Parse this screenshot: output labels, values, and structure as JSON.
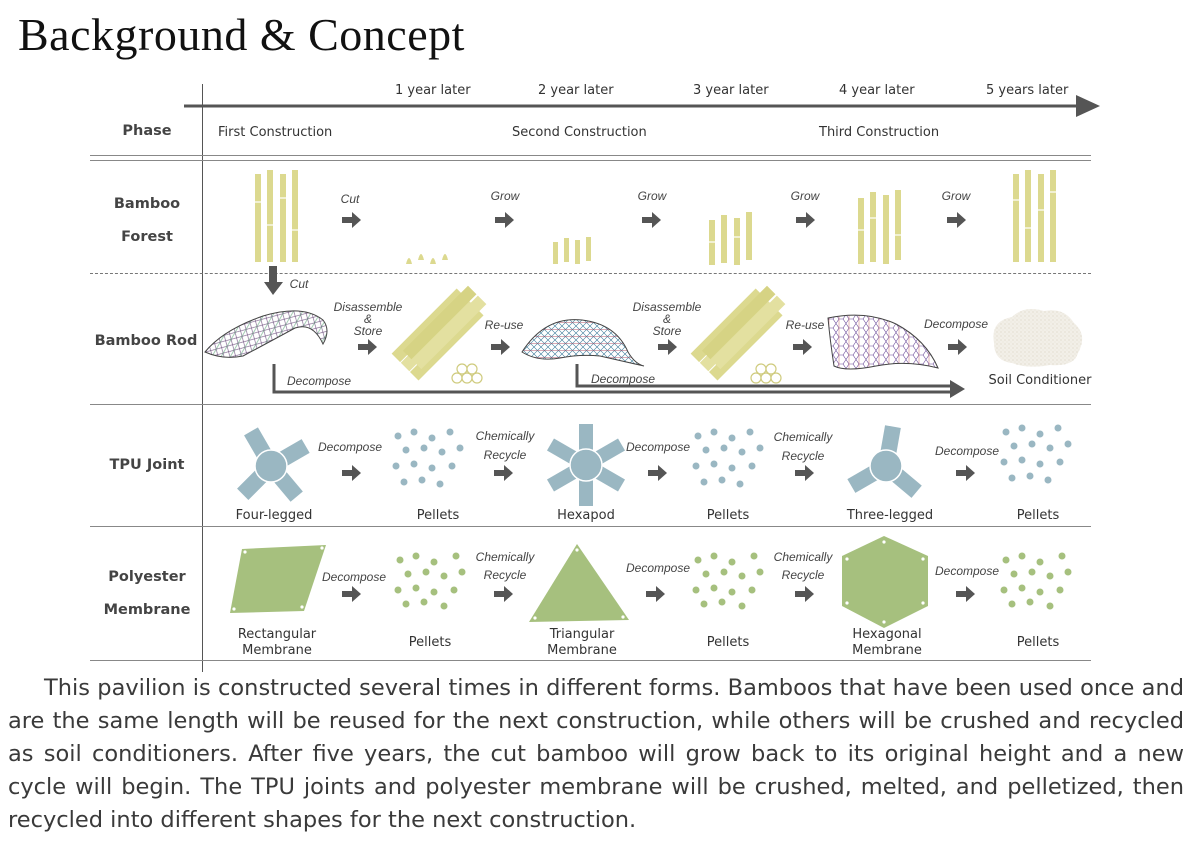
{
  "title": "Background & Concept",
  "timeline": {
    "years": [
      "1 year later",
      "2 year later",
      "3 year later",
      "4 year later",
      "5 years later"
    ],
    "phase_label": "Phase",
    "phases": [
      "First Construction",
      "Second Construction",
      "Third Construction"
    ]
  },
  "rows": {
    "bamboo_forest": {
      "label_1": "Bamboo",
      "label_2": "Forest",
      "actions": [
        "Cut",
        "Grow",
        "Grow",
        "Grow",
        "Grow"
      ],
      "down_action": "Cut"
    },
    "bamboo_rod": {
      "label": "Bamboo Rod",
      "actions": [
        {
          "l1": "Disassemble",
          "l2": "&",
          "l3": "Store"
        },
        {
          "l1": "Re-use"
        },
        {
          "l1": "Disassemble",
          "l2": "&",
          "l3": "Store"
        },
        {
          "l1": "Re-use"
        },
        {
          "l1": "Decompose"
        }
      ],
      "decompose_1": "Decompose",
      "decompose_2": "Decompose",
      "end_label": "Soil Conditioner"
    },
    "tpu_joint": {
      "label": "TPU Joint",
      "items": [
        "Four-legged",
        "Pellets",
        "Hexapod",
        "Pellets",
        "Three-legged",
        "Pellets"
      ],
      "actions": [
        {
          "l1": "Decompose"
        },
        {
          "l1": "Chemically",
          "l2": "Recycle"
        },
        {
          "l1": "Decompose"
        },
        {
          "l1": "Chemically",
          "l2": "Recycle"
        },
        {
          "l1": "Decompose"
        }
      ]
    },
    "polyester_membrane": {
      "label_1": "Polyester",
      "label_2": "Membrane",
      "items": [
        {
          "l1": "Rectangular",
          "l2": "Membrane"
        },
        {
          "l1": "Pellets"
        },
        {
          "l1": "Triangular",
          "l2": "Membrane"
        },
        {
          "l1": "Pellets"
        },
        {
          "l1": "Hexagonal",
          "l2": "Membrane"
        },
        {
          "l1": "Pellets"
        }
      ],
      "actions": [
        {
          "l1": "Decompose"
        },
        {
          "l1": "Chemically",
          "l2": "Recycle"
        },
        {
          "l1": "Decompose"
        },
        {
          "l1": "Chemically",
          "l2": "Recycle"
        },
        {
          "l1": "Decompose"
        }
      ]
    }
  },
  "description": "This pavilion is constructed several times in different forms. Bamboos that have been used once and are the same length will be reused for the next construction, while others will be crushed and recycled as soil conditioners. After five years, the cut bamboo will grow back to its original height and a new cycle will begin. The TPU joints and polyester membrane will be crushed, melted, and pelletized, then recycled into different shapes for the next construction.",
  "colors": {
    "bamboo": "#dcd98f",
    "tpu": "#9ab7c2",
    "membrane": "#a6c07e",
    "arrow": "#555555",
    "soil": "#ece8df"
  }
}
